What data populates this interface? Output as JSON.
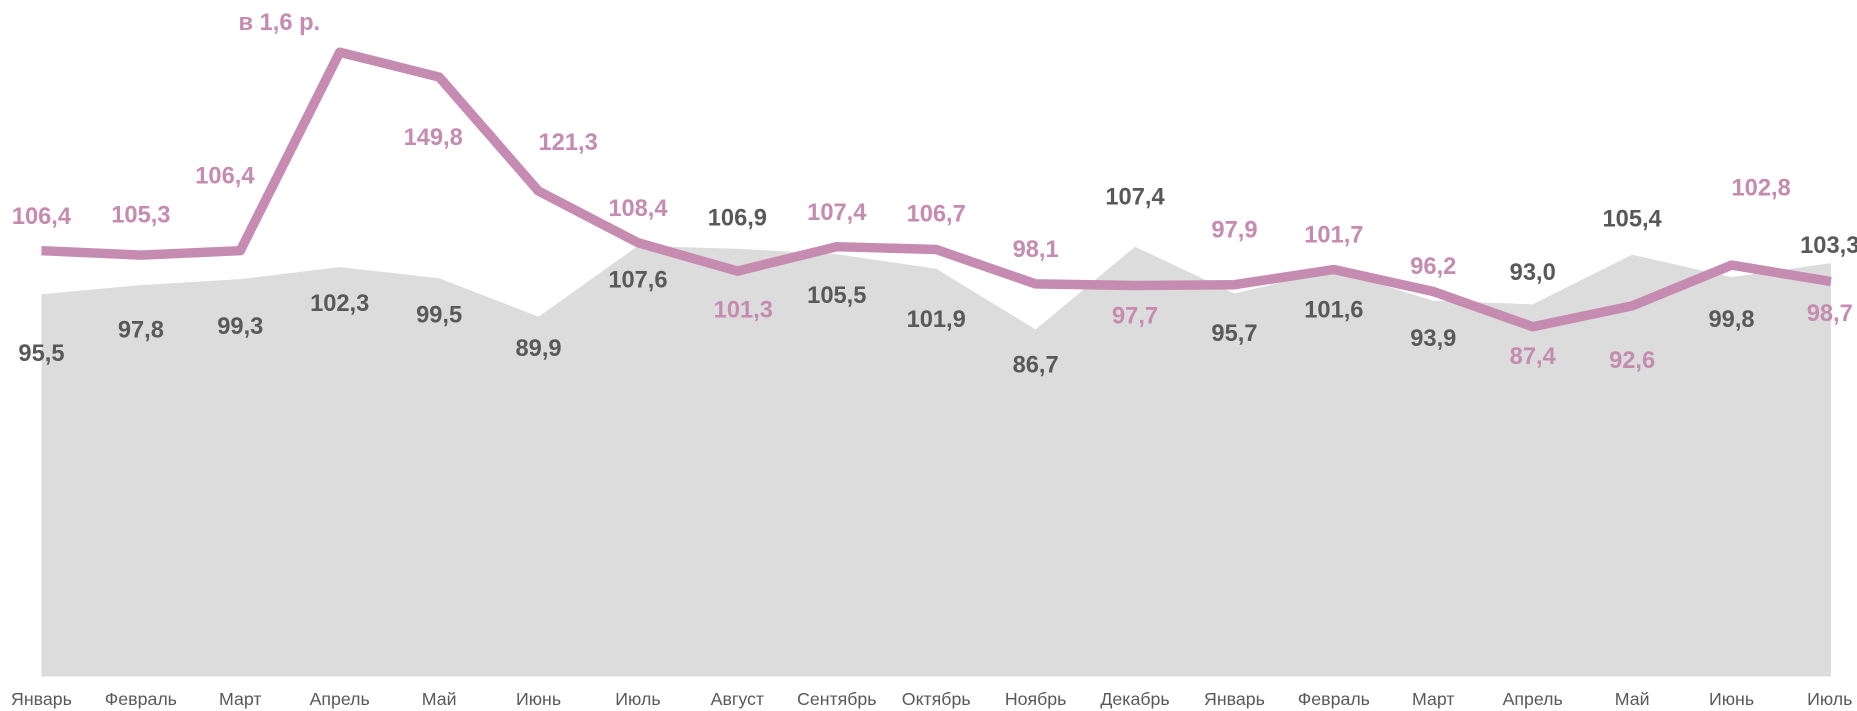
{
  "chart_data": {
    "type": "area-line",
    "categories": [
      "Январь",
      "Февраль",
      "Март",
      "Апрель",
      "Май",
      "Июнь",
      "Июль",
      "Август",
      "Сентябрь",
      "Октябрь",
      "Ноябрь",
      "Декабрь",
      "Январь",
      "Февраль",
      "Март",
      "Апрель",
      "Май",
      "Июнь",
      "Июль"
    ],
    "ylim": [
      0,
      169
    ],
    "series": [
      {
        "type": "area",
        "color": "#dcdcdc",
        "label_color": "#595959",
        "values": [
          95.5,
          97.8,
          99.3,
          102.3,
          99.5,
          89.9,
          107.6,
          106.9,
          105.5,
          101.9,
          86.7,
          107.4,
          95.7,
          101.6,
          93.9,
          93.0,
          105.4,
          99.8,
          103.3
        ],
        "value_labels": [
          "95,5",
          "97,8",
          "99,3",
          "102,3",
          "99,5",
          "89,9",
          "107,6",
          "106,9",
          "105,5",
          "101,9",
          "86,7",
          "107,4",
          "95,7",
          "101,6",
          "93,9",
          "93,0",
          "105,4",
          "99,8",
          "103,3"
        ]
      },
      {
        "type": "line",
        "color": "#c58bb0",
        "label_color": "#c58bb0",
        "values": [
          106.4,
          105.3,
          106.4,
          156,
          149.8,
          121.3,
          108.4,
          101.3,
          107.4,
          106.7,
          98.1,
          97.7,
          97.9,
          101.7,
          96.2,
          87.4,
          92.6,
          102.8,
          98.7
        ],
        "value_labels": [
          "106,4",
          "105,3",
          "106,4",
          "в 1,6 р.",
          "149,8",
          "121,3",
          "108,4",
          "101,3",
          "107,4",
          "106,7",
          "98,1",
          "97,7",
          "97,9",
          "101,7",
          "96,2",
          "87,4",
          "92,6",
          "102,8",
          "98,7"
        ]
      }
    ]
  }
}
